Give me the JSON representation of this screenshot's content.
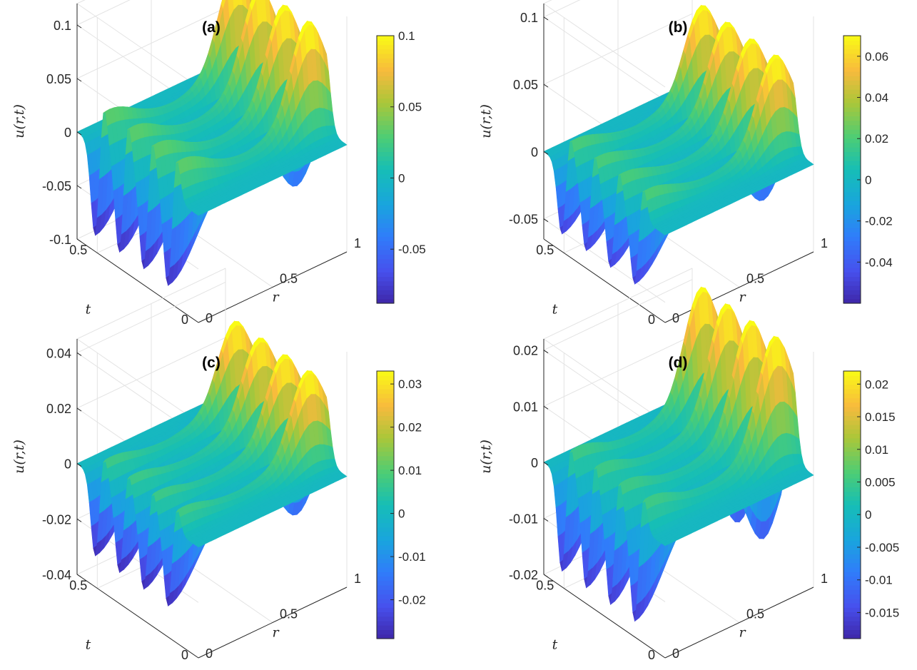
{
  "chart_data": [
    {
      "type": "surface",
      "title": "(a)",
      "xlabel": "r",
      "ylabel": "t",
      "zlabel": "u(r,t)",
      "xlim": [
        0,
        1
      ],
      "ylim": [
        0,
        0.6
      ],
      "zlim": [
        -0.1,
        0.12
      ],
      "xticks": [
        "0",
        "0.5",
        "1"
      ],
      "yticks": [
        "0",
        "0.5"
      ],
      "zticks": [
        {
          "v": 0.1,
          "label": "0.1"
        },
        {
          "v": 0.05,
          "label": "0.05"
        },
        {
          "v": 0,
          "label": "0"
        },
        {
          "v": -0.05,
          "label": "-0.05"
        },
        {
          "v": -0.1,
          "label": "-0.1"
        }
      ],
      "wave_times": [
        0.12,
        0.24,
        0.36,
        0.48
      ],
      "peak_near_origin": 0.05,
      "trough_near_origin": -0.09,
      "peak_far": 0.1,
      "trough_far": -0.07,
      "colorbar": {
        "min": -0.088,
        "max": 0.1,
        "ticks": [
          {
            "v": 0.1,
            "label": "0.1"
          },
          {
            "v": 0.05,
            "label": "0.05"
          },
          {
            "v": 0,
            "label": "0"
          },
          {
            "v": -0.05,
            "label": "-0.05"
          }
        ]
      }
    },
    {
      "type": "surface",
      "title": "(b)",
      "xlabel": "r",
      "ylabel": "t",
      "zlabel": "u(r,t)",
      "xlim": [
        0,
        1
      ],
      "ylim": [
        0,
        0.6
      ],
      "zlim": [
        -0.065,
        0.11
      ],
      "xticks": [
        "0",
        "0.5",
        "1"
      ],
      "yticks": [
        "0",
        "0.5"
      ],
      "zticks": [
        {
          "v": 0.1,
          "label": "0.1"
        },
        {
          "v": 0.05,
          "label": "0.05"
        },
        {
          "v": 0,
          "label": "0"
        },
        {
          "v": -0.05,
          "label": "-0.05"
        }
      ],
      "wave_times": [
        0.12,
        0.24,
        0.36,
        0.48
      ],
      "peak_near_origin": 0.03,
      "trough_near_origin": -0.055,
      "peak_far": 0.07,
      "trough_far": -0.05,
      "colorbar": {
        "min": -0.06,
        "max": 0.07,
        "ticks": [
          {
            "v": 0.06,
            "label": "0.06"
          },
          {
            "v": 0.04,
            "label": "0.04"
          },
          {
            "v": 0.02,
            "label": "0.02"
          },
          {
            "v": 0,
            "label": "0"
          },
          {
            "v": -0.02,
            "label": "-0.02"
          },
          {
            "v": -0.04,
            "label": "-0.04"
          }
        ]
      }
    },
    {
      "type": "surface",
      "title": "(c)",
      "xlabel": "r",
      "ylabel": "t",
      "zlabel": "u(r,t)",
      "xlim": [
        0,
        1
      ],
      "ylim": [
        0,
        0.6
      ],
      "zlim": [
        -0.04,
        0.045
      ],
      "xticks": [
        "0",
        "0.5",
        "1"
      ],
      "yticks": [
        "0",
        "0.5"
      ],
      "zticks": [
        {
          "v": 0.04,
          "label": "0.04"
        },
        {
          "v": 0.02,
          "label": "0.02"
        },
        {
          "v": 0,
          "label": "0"
        },
        {
          "v": -0.02,
          "label": "-0.02"
        },
        {
          "v": -0.04,
          "label": "-0.04"
        }
      ],
      "wave_times": [
        0.12,
        0.24,
        0.36,
        0.48
      ],
      "peak_near_origin": 0.012,
      "trough_near_origin": -0.03,
      "peak_far": 0.033,
      "trough_far": -0.025,
      "colorbar": {
        "min": -0.029,
        "max": 0.033,
        "ticks": [
          {
            "v": 0.03,
            "label": "0.03"
          },
          {
            "v": 0.02,
            "label": "0.02"
          },
          {
            "v": 0.01,
            "label": "0.01"
          },
          {
            "v": 0,
            "label": "0"
          },
          {
            "v": -0.01,
            "label": "-0.01"
          },
          {
            "v": -0.02,
            "label": "-0.02"
          }
        ]
      }
    },
    {
      "type": "surface",
      "title": "(d)",
      "xlabel": "r",
      "ylabel": "t",
      "zlabel": "u(r,t)",
      "xlim": [
        0,
        1
      ],
      "ylim": [
        0,
        0.6
      ],
      "zlim": [
        -0.02,
        0.022
      ],
      "xticks": [
        "0",
        "0.5",
        "1"
      ],
      "yticks": [
        "0",
        "0.5"
      ],
      "zticks": [
        {
          "v": 0.02,
          "label": "0.02"
        },
        {
          "v": 0.01,
          "label": "0.01"
        },
        {
          "v": 0,
          "label": "0"
        },
        {
          "v": -0.01,
          "label": "-0.01"
        },
        {
          "v": -0.02,
          "label": "-0.02"
        }
      ],
      "wave_times": [
        0.12,
        0.24,
        0.36,
        0.48
      ],
      "peak_near_origin": 0.008,
      "trough_near_origin": -0.018,
      "peak_far": 0.022,
      "trough_far": -0.018,
      "colorbar": {
        "min": -0.019,
        "max": 0.022,
        "ticks": [
          {
            "v": 0.02,
            "label": "0.02"
          },
          {
            "v": 0.015,
            "label": "0.015"
          },
          {
            "v": 0.01,
            "label": "0.01"
          },
          {
            "v": 0.005,
            "label": "0.005"
          },
          {
            "v": 0,
            "label": "0"
          },
          {
            "v": -0.005,
            "label": "-0.005"
          },
          {
            "v": -0.01,
            "label": "-0.01"
          },
          {
            "v": -0.015,
            "label": "-0.015"
          }
        ]
      }
    }
  ]
}
